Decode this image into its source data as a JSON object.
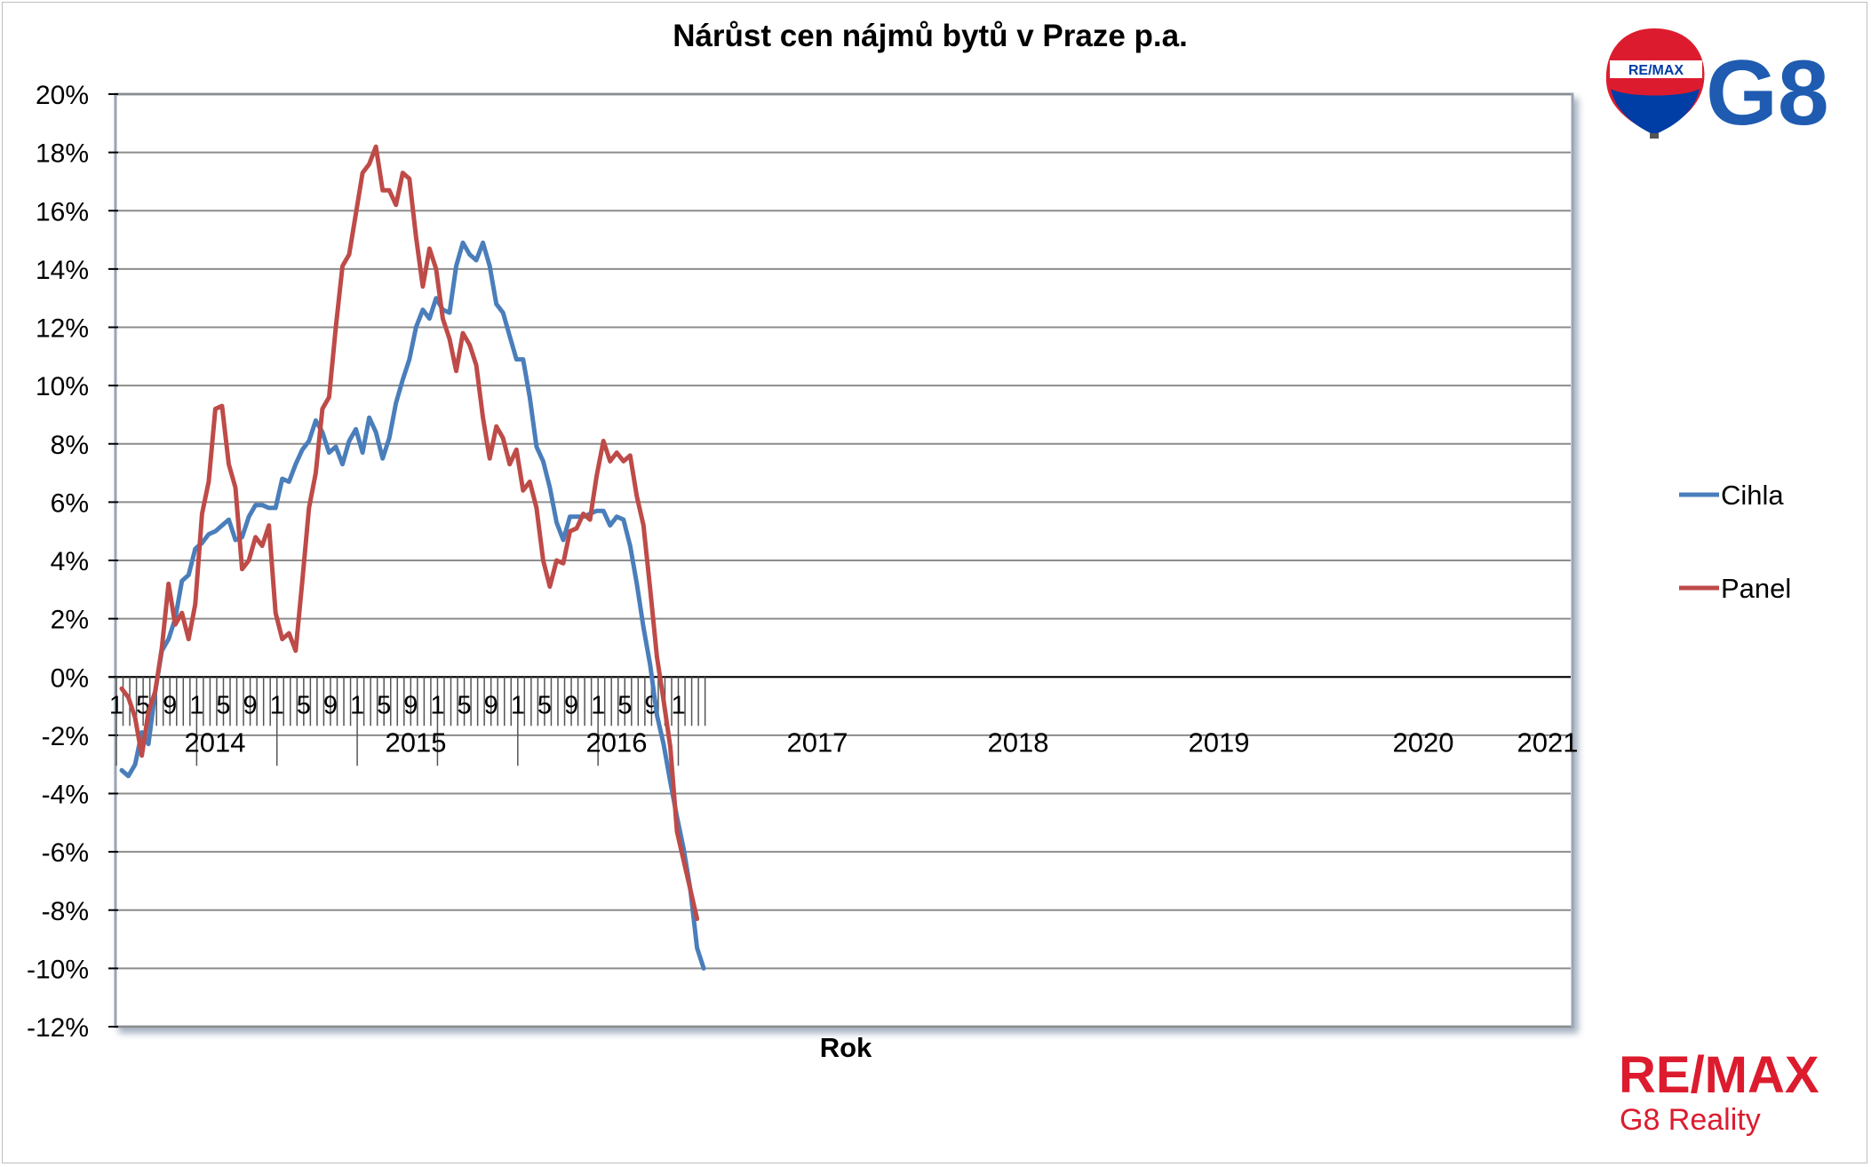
{
  "chart_data": {
    "type": "line",
    "title": "Nárůst cen nájmů bytů v Praze p.a.",
    "xlabel": "Rok",
    "ylabel": "",
    "ylim": [
      -0.12,
      0.2
    ],
    "yticks": [
      "20%",
      "18%",
      "16%",
      "14%",
      "12%",
      "10%",
      "8%",
      "6%",
      "4%",
      "2%",
      "0%",
      "-2%",
      "-4%",
      "-6%",
      "-8%",
      "-10%",
      "-12%"
    ],
    "month_ticks": [
      "1",
      "5",
      "9",
      "1",
      "5",
      "9",
      "1",
      "5",
      "9",
      "1",
      "5",
      "9",
      "1",
      "5",
      "9",
      "1",
      "5",
      "9",
      "1",
      "5",
      "9",
      "1"
    ],
    "years": [
      "2014",
      "2015",
      "2016",
      "2017",
      "2018",
      "2019",
      "2020",
      "2021"
    ],
    "grid": true,
    "legend_position": "right",
    "series": [
      {
        "name": "Cihla",
        "color": "#4a7ebb",
        "values": [
          -3.2,
          -3.4,
          -3.0,
          -1.9,
          -2.3,
          -0.5,
          0.9,
          1.3,
          2.0,
          3.3,
          3.5,
          4.4,
          4.6,
          4.9,
          5.0,
          5.2,
          5.4,
          4.7,
          4.8,
          5.5,
          5.9,
          5.9,
          5.8,
          5.8,
          6.8,
          6.7,
          7.3,
          7.8,
          8.1,
          8.8,
          8.4,
          7.7,
          7.9,
          7.3,
          8.1,
          8.5,
          7.7,
          8.9,
          8.4,
          7.5,
          8.2,
          9.4,
          10.2,
          10.9,
          12.0,
          12.6,
          12.3,
          13.0,
          12.6,
          12.5,
          14.1,
          14.9,
          14.5,
          14.3,
          14.9,
          14.1,
          12.8,
          12.5,
          11.7,
          10.9,
          10.9,
          9.6,
          7.9,
          7.4,
          6.5,
          5.3,
          4.7,
          5.5,
          5.5,
          5.5,
          5.6,
          5.7,
          5.7,
          5.2,
          5.5,
          5.4,
          4.5,
          3.2,
          1.7,
          0.4,
          -1.3,
          -2.3,
          -3.6,
          -4.8,
          -5.9,
          -7.3,
          -9.3,
          -10.0
        ]
      },
      {
        "name": "Panel",
        "color": "#be4b48",
        "values": [
          -0.4,
          -0.7,
          -1.4,
          -2.7,
          -1.2,
          -0.5,
          1.0,
          3.2,
          1.8,
          2.2,
          1.3,
          2.5,
          5.6,
          6.7,
          9.2,
          9.3,
          7.3,
          6.5,
          3.7,
          4.0,
          4.8,
          4.5,
          5.2,
          2.2,
          1.3,
          1.5,
          0.9,
          3.3,
          5.8,
          7.0,
          9.2,
          9.6,
          12.0,
          14.1,
          14.5,
          15.9,
          17.3,
          17.6,
          18.2,
          16.7,
          16.7,
          16.2,
          17.3,
          17.1,
          15.1,
          13.4,
          14.7,
          14.0,
          12.3,
          11.6,
          10.5,
          11.8,
          11.4,
          10.7,
          8.9,
          7.5,
          8.6,
          8.2,
          7.3,
          7.8,
          6.4,
          6.7,
          5.8,
          4.0,
          3.1,
          4.0,
          3.9,
          5.0,
          5.1,
          5.6,
          5.4,
          6.9,
          8.1,
          7.4,
          7.7,
          7.4,
          7.6,
          6.2,
          5.2,
          3.0,
          0.7,
          -0.8,
          -2.4,
          -5.3,
          -6.3,
          -7.3,
          -8.3
        ]
      }
    ]
  },
  "legend": {
    "cihla": "Cihla",
    "panel": "Panel"
  },
  "logos": {
    "balloon_text": "RE/MAX",
    "top_brand": "G8",
    "bottom_brand": "RE/MAX",
    "bottom_sub": "G8 Reality",
    "remax_red": "#dc1c2e",
    "remax_blue": "#003da5",
    "g8_blue": "#1f5bb0"
  }
}
